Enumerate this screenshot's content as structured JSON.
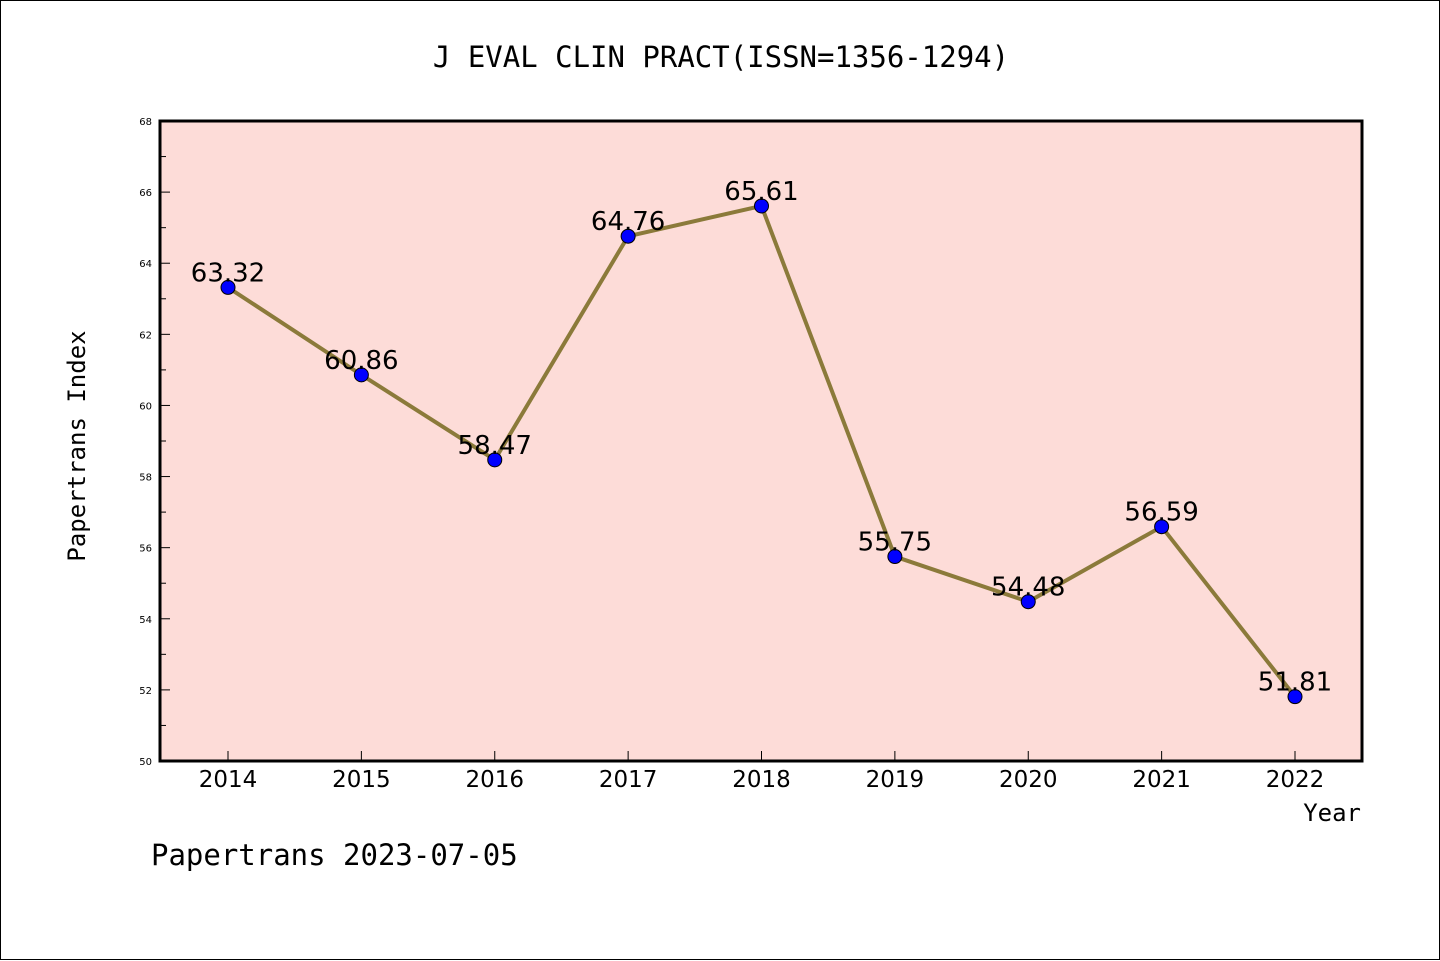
{
  "chart_data": {
    "type": "line",
    "title": "J EVAL CLIN PRACT(ISSN=1356-1294)",
    "xlabel": "Year",
    "ylabel": "Papertrans Index",
    "categories": [
      "2014",
      "2015",
      "2016",
      "2017",
      "2018",
      "2019",
      "2020",
      "2021",
      "2022"
    ],
    "series": [
      {
        "values": [
          63.32,
          60.86,
          58.47,
          64.76,
          65.61,
          55.75,
          54.48,
          56.59,
          51.81
        ],
        "labels": [
          "63.32",
          "60.86",
          "58.47",
          "64.76",
          "65.61",
          "55.75",
          "54.48",
          "56.59",
          "51.81"
        ],
        "line_color": "#8b7a3a",
        "marker_color": "#0000ff"
      }
    ],
    "ylim": [
      50,
      68
    ],
    "yticks": [
      50,
      52,
      54,
      56,
      58,
      60,
      62,
      64,
      66,
      68
    ],
    "plot_background": "#fddcd8",
    "grid": false,
    "footer": "Papertrans 2023-07-05"
  }
}
